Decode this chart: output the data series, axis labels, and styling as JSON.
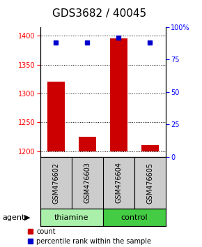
{
  "title": "GDS3682 / 40045",
  "samples": [
    "GSM476602",
    "GSM476603",
    "GSM476604",
    "GSM476605"
  ],
  "counts": [
    1320,
    1225,
    1395,
    1210
  ],
  "count_baseline": 1200,
  "percentiles": [
    88,
    88,
    92,
    88
  ],
  "ylim_left": [
    1190,
    1415
  ],
  "ylim_right": [
    0,
    100
  ],
  "yticks_left": [
    1200,
    1250,
    1300,
    1350,
    1400
  ],
  "yticks_right": [
    0,
    25,
    50,
    75,
    100
  ],
  "groups": [
    {
      "label": "thiamine",
      "samples": [
        0,
        1
      ],
      "color": "#aaf0aa"
    },
    {
      "label": "control",
      "samples": [
        2,
        3
      ],
      "color": "#44cc44"
    }
  ],
  "bar_color": "#cc0000",
  "dot_color": "#0000cc",
  "bar_width": 0.55,
  "bg_bar_color": "#cccccc",
  "title_fontsize": 11,
  "label_fontsize": 7,
  "group_fontsize": 8,
  "legend_fontsize": 7,
  "tick_fontsize": 7
}
